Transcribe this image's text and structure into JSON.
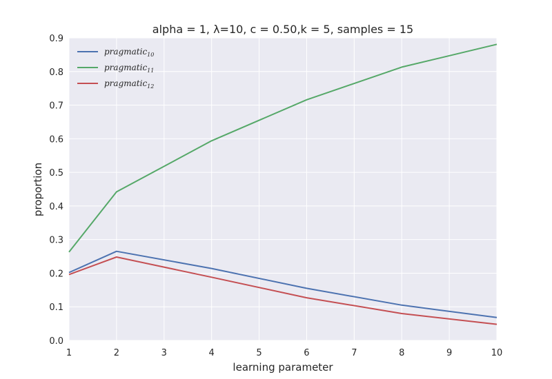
{
  "chart_data": {
    "type": "line",
    "title": "alpha = 1, λ=10, c = 0.50,k = 5, samples = 15",
    "xlabel": "learning parameter",
    "ylabel": "proportion",
    "xlim": [
      1,
      10
    ],
    "ylim": [
      0,
      0.9
    ],
    "xticks": [
      1,
      2,
      3,
      4,
      5,
      6,
      7,
      8,
      9,
      10
    ],
    "yticks": [
      "0.0",
      "0.1",
      "0.2",
      "0.3",
      "0.4",
      "0.5",
      "0.6",
      "0.7",
      "0.8",
      "0.9"
    ],
    "grid": true,
    "legend_position": "top-left",
    "x": [
      1,
      2,
      4,
      6,
      8,
      10
    ],
    "series": [
      {
        "name": "pragmatic",
        "subscript": "10",
        "color": "#4c72b0",
        "values": [
          0.202,
          0.265,
          0.214,
          0.155,
          0.105,
          0.068
        ]
      },
      {
        "name": "pragmatic",
        "subscript": "11",
        "color": "#55a868",
        "values": [
          0.263,
          0.442,
          0.594,
          0.716,
          0.813,
          0.881
        ]
      },
      {
        "name": "pragmatic",
        "subscript": "12",
        "color": "#c44e52",
        "values": [
          0.196,
          0.248,
          0.188,
          0.127,
          0.08,
          0.048
        ]
      }
    ]
  }
}
